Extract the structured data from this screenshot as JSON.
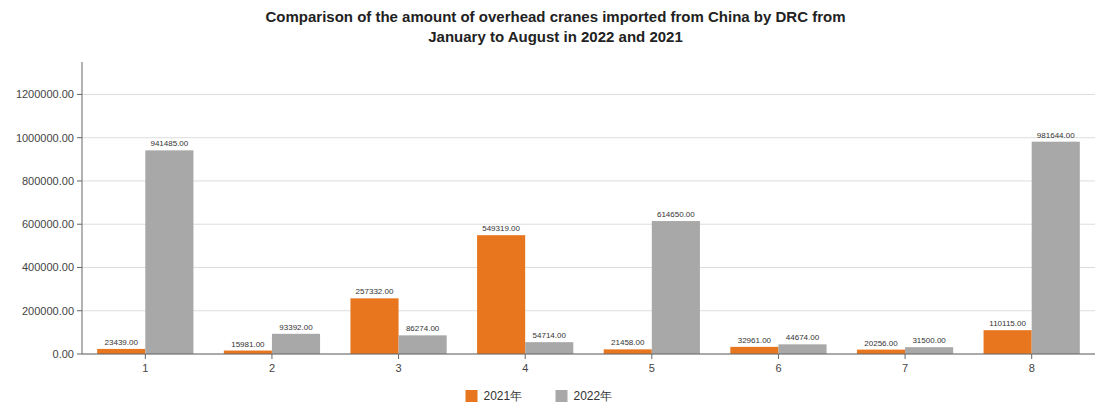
{
  "chart_data": {
    "type": "bar",
    "title": "Comparison of the amount of overhead cranes imported from China by DRC from\nJanuary to August in 2022 and 2021",
    "categories": [
      "1",
      "2",
      "3",
      "4",
      "5",
      "6",
      "7",
      "8"
    ],
    "series": [
      {
        "name": "2021年",
        "color": "#E8761E",
        "values": [
          23439,
          15981,
          257332,
          549319,
          21458,
          32961,
          20256,
          110115
        ],
        "value_labels": [
          "23439.00",
          "15981.00",
          "257332.00",
          "549319.00",
          "21458.00",
          "32961.00",
          "20256.00",
          "110115.00"
        ]
      },
      {
        "name": "2022年",
        "color": "#A8A8A8",
        "values": [
          941485,
          93392,
          86274,
          54714,
          614650,
          44674,
          31500,
          981644
        ],
        "value_labels": [
          "941485.00",
          "93392.00",
          "86274.00",
          "54714.00",
          "614650.00",
          "44674.00",
          "31500.00",
          "981644.00"
        ]
      }
    ],
    "ylim": [
      0,
      1350000
    ],
    "yticks": [
      {
        "value": 0,
        "label": "0.00"
      },
      {
        "value": 200000,
        "label": "200000.00"
      },
      {
        "value": 400000,
        "label": "400000.00"
      },
      {
        "value": 600000,
        "label": "600000.00"
      },
      {
        "value": 800000,
        "label": "800000.00"
      },
      {
        "value": 1000000,
        "label": "1000000.00"
      },
      {
        "value": 1200000,
        "label": "1200000.00"
      }
    ],
    "grid": true,
    "legend": "bottom",
    "data_labels": true
  }
}
